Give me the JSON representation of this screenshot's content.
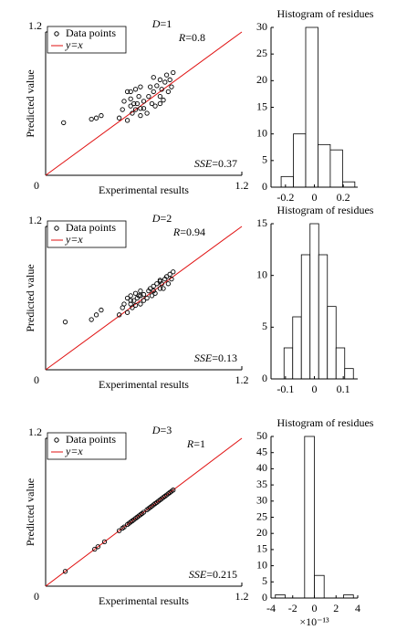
{
  "chart_data": [
    {
      "type": "scatter",
      "xlabel": "Experimental results",
      "ylabel": "Predicted value",
      "xlim": [
        0,
        1.2
      ],
      "ylim": [
        0,
        1.2
      ],
      "xticks": [
        0,
        1.2
      ],
      "yticks": [
        1.2
      ],
      "annotations": [
        "D=1",
        "R=0.8",
        "SSE=0.37"
      ],
      "series": [
        {
          "name": "Data points",
          "color": "#000000",
          "x": [
            0.11,
            0.28,
            0.31,
            0.34,
            0.45,
            0.47,
            0.48,
            0.5,
            0.5,
            0.52,
            0.52,
            0.53,
            0.54,
            0.55,
            0.55,
            0.56,
            0.57,
            0.58,
            0.58,
            0.6,
            0.6,
            0.62,
            0.63,
            0.64,
            0.65,
            0.66,
            0.67,
            0.68,
            0.7,
            0.7,
            0.71,
            0.72,
            0.73,
            0.74,
            0.75,
            0.76,
            0.77,
            0.78,
            0.52,
            0.58,
            0.66,
            0.7
          ],
          "values": [
            0.44,
            0.47,
            0.48,
            0.5,
            0.48,
            0.55,
            0.62,
            0.46,
            0.7,
            0.58,
            0.64,
            0.52,
            0.6,
            0.55,
            0.72,
            0.6,
            0.66,
            0.5,
            0.74,
            0.62,
            0.56,
            0.52,
            0.66,
            0.74,
            0.6,
            0.7,
            0.58,
            0.75,
            0.66,
            0.8,
            0.72,
            0.63,
            0.78,
            0.84,
            0.7,
            0.8,
            0.74,
            0.86,
            0.7,
            0.56,
            0.82,
            0.6
          ]
        }
      ],
      "reference_line": {
        "name": "y=x",
        "color": "#e01010"
      }
    },
    {
      "type": "histogram",
      "title": "Histogram of residues",
      "color": "#ffffff",
      "bins": [
        -0.23,
        -0.145,
        -0.06,
        0.025,
        0.11,
        0.195,
        0.28
      ],
      "values": [
        2,
        10,
        30,
        8,
        7,
        1
      ],
      "xlim": [
        -0.3,
        0.3
      ],
      "ylim": [
        0,
        30
      ],
      "xticks": [
        -0.2,
        0,
        0.2
      ],
      "yticks": [
        0,
        5,
        10,
        15,
        20,
        25,
        30
      ]
    },
    {
      "type": "scatter",
      "xlabel": "Experimental results",
      "ylabel": "Predicted value",
      "xlim": [
        0,
        1.2
      ],
      "ylim": [
        0,
        1.2
      ],
      "xticks": [
        0,
        1.2
      ],
      "yticks": [
        1.2
      ],
      "annotations": [
        "D=2",
        "R=0.94",
        "SSE=0.13"
      ],
      "series": [
        {
          "name": "Data points",
          "color": "#000000",
          "x": [
            0.12,
            0.28,
            0.31,
            0.34,
            0.45,
            0.47,
            0.48,
            0.5,
            0.5,
            0.52,
            0.52,
            0.53,
            0.54,
            0.55,
            0.55,
            0.56,
            0.57,
            0.58,
            0.58,
            0.6,
            0.6,
            0.62,
            0.63,
            0.64,
            0.65,
            0.66,
            0.67,
            0.68,
            0.7,
            0.7,
            0.71,
            0.72,
            0.73,
            0.74,
            0.75,
            0.76,
            0.77,
            0.78,
            0.52,
            0.58,
            0.66,
            0.7
          ],
          "values": [
            0.4,
            0.42,
            0.46,
            0.5,
            0.46,
            0.52,
            0.55,
            0.48,
            0.6,
            0.55,
            0.62,
            0.52,
            0.58,
            0.54,
            0.64,
            0.6,
            0.62,
            0.55,
            0.66,
            0.63,
            0.58,
            0.6,
            0.66,
            0.68,
            0.62,
            0.7,
            0.64,
            0.72,
            0.68,
            0.75,
            0.72,
            0.68,
            0.76,
            0.78,
            0.72,
            0.8,
            0.76,
            0.82,
            0.58,
            0.62,
            0.66,
            0.74
          ]
        }
      ],
      "reference_line": {
        "name": "y=x",
        "color": "#e01010"
      }
    },
    {
      "type": "histogram",
      "title": "Histogram of residues",
      "color": "#ffffff",
      "bins": [
        -0.105,
        -0.075,
        -0.045,
        -0.015,
        0.015,
        0.045,
        0.075,
        0.105,
        0.135
      ],
      "values": [
        3,
        6,
        12,
        15,
        12,
        7,
        3,
        1
      ],
      "xlim": [
        -0.15,
        0.15
      ],
      "ylim": [
        0,
        15
      ],
      "xticks": [
        -0.1,
        0,
        0.1
      ],
      "yticks": [
        0,
        5,
        10,
        15
      ]
    },
    {
      "type": "scatter",
      "xlabel": "Experimental results",
      "ylabel": "Predicted value",
      "xlim": [
        0,
        1.2
      ],
      "ylim": [
        0,
        1.2
      ],
      "xticks": [
        0,
        1.2
      ],
      "yticks": [
        1.2
      ],
      "annotations": [
        "D=3",
        "R=1",
        "SSE=0.215"
      ],
      "series": [
        {
          "name": "Data points",
          "color": "#000000",
          "x": [
            0.12,
            0.3,
            0.32,
            0.36,
            0.45,
            0.47,
            0.48,
            0.5,
            0.51,
            0.52,
            0.53,
            0.54,
            0.55,
            0.56,
            0.57,
            0.58,
            0.59,
            0.6,
            0.62,
            0.63,
            0.64,
            0.65,
            0.66,
            0.67,
            0.68,
            0.69,
            0.7,
            0.71,
            0.72,
            0.73,
            0.74,
            0.75,
            0.76,
            0.77,
            0.78
          ],
          "values": [
            0.12,
            0.3,
            0.32,
            0.36,
            0.45,
            0.47,
            0.48,
            0.5,
            0.51,
            0.52,
            0.53,
            0.54,
            0.55,
            0.56,
            0.57,
            0.58,
            0.59,
            0.6,
            0.62,
            0.63,
            0.64,
            0.65,
            0.66,
            0.67,
            0.68,
            0.69,
            0.7,
            0.71,
            0.72,
            0.73,
            0.74,
            0.75,
            0.76,
            0.77,
            0.78
          ]
        }
      ],
      "reference_line": {
        "name": "y=x",
        "color": "#e01010"
      }
    },
    {
      "type": "histogram",
      "title": "Histogram of residues",
      "color": "#ffffff",
      "bins": [
        -3.6,
        -2.7,
        -1.8,
        -0.9,
        0,
        0.9,
        1.8,
        2.7,
        3.6
      ],
      "values": [
        1,
        0,
        0,
        50,
        7,
        0,
        0,
        1
      ],
      "xlim": [
        -4,
        4
      ],
      "ylim": [
        0,
        50
      ],
      "xticks": [
        -4,
        -2,
        0,
        2,
        4
      ],
      "yticks": [
        0,
        5,
        10,
        15,
        20,
        25,
        30,
        35,
        40,
        45,
        50
      ],
      "x_scale_label": "×10⁻¹³"
    }
  ]
}
